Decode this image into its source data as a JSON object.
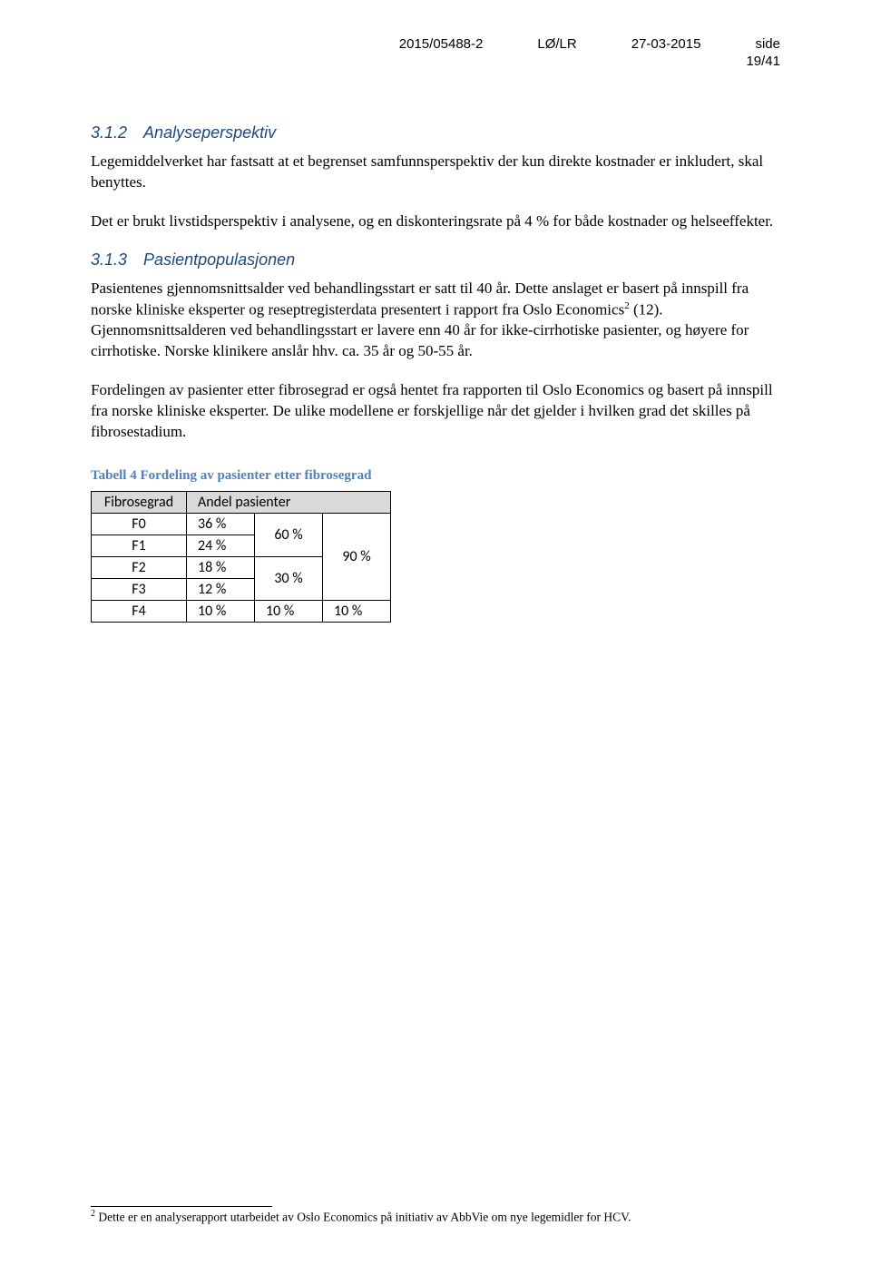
{
  "header": {
    "ref": "2015/05488-2",
    "code": "LØ/LR",
    "date": "27-03-2015",
    "side_label": "side",
    "page": "19/41"
  },
  "s312": {
    "num": "3.1.2",
    "title": "Analyseperspektiv",
    "p1": "Legemiddelverket har fastsatt at et begrenset samfunnsperspektiv der kun direkte kostnader er inkludert, skal benyttes.",
    "p2": "Det er brukt livstidsperspektiv i analysene, og en diskonteringsrate på 4 % for både kostnader og helseeffekter."
  },
  "s313": {
    "num": "3.1.3",
    "title": "Pasientpopulasjonen",
    "p1a": "Pasientenes gjennomsnittsalder ved behandlingsstart er satt til 40 år. Dette anslaget er basert på innspill fra norske kliniske eksperter og reseptregisterdata presentert i rapport fra Oslo Economics",
    "p1b": " (12). Gjennomsnittsalderen ved behandlingsstart er lavere enn 40 år for ikke-cirrhotiske pasienter, og høyere for cirrhotiske. Norske klinikere anslår hhv. ca. 35 år og 50-55 år.",
    "p2": "Fordelingen av pasienter etter fibrosegrad er også hentet fra rapporten til Oslo Economics og basert på innspill fra norske kliniske eksperter. De ulike modellene er forskjellige når det gjelder i hvilken grad det skilles på fibrosestadium."
  },
  "table": {
    "caption": "Tabell 4 Fordeling av pasienter etter fibrosegrad",
    "h1": "Fibrosegrad",
    "h2": "Andel pasienter",
    "rows": [
      {
        "g": "F0",
        "v": "36 %"
      },
      {
        "g": "F1",
        "v": "24 %"
      },
      {
        "g": "F2",
        "v": "18 %"
      },
      {
        "g": "F3",
        "v": "12 %"
      },
      {
        "g": "F4",
        "v": "10 %"
      }
    ],
    "group_a": "60 %",
    "group_b": "30 %",
    "group_c": "90 %",
    "group_d": "10 %",
    "group_e": "10 %"
  },
  "footnote": {
    "marker": "2",
    "text": " Dette er en analyserapport utarbeidet av Oslo Economics på initiativ av AbbVie om nye legemidler for HCV."
  }
}
